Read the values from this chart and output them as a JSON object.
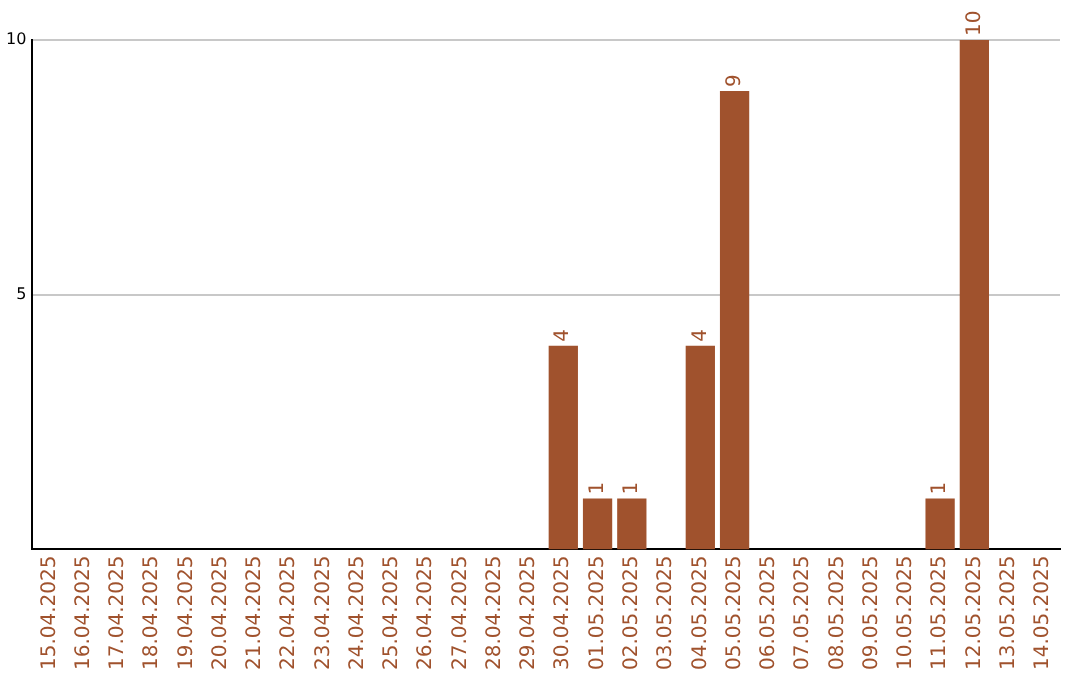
{
  "chart_data": {
    "type": "bar",
    "categories": [
      "15.04.2025",
      "16.04.2025",
      "17.04.2025",
      "18.04.2025",
      "19.04.2025",
      "20.04.2025",
      "21.04.2025",
      "22.04.2025",
      "23.04.2025",
      "24.04.2025",
      "25.04.2025",
      "26.04.2025",
      "27.04.2025",
      "28.04.2025",
      "29.04.2025",
      "30.04.2025",
      "01.05.2025",
      "02.05.2025",
      "03.05.2025",
      "04.05.2025",
      "05.05.2025",
      "06.05.2025",
      "07.05.2025",
      "08.05.2025",
      "09.05.2025",
      "10.05.2025",
      "11.05.2025",
      "12.05.2025",
      "13.05.2025",
      "14.05.2025"
    ],
    "values": [
      null,
      null,
      null,
      null,
      null,
      null,
      null,
      null,
      null,
      null,
      null,
      null,
      null,
      null,
      null,
      4,
      1,
      1,
      null,
      4,
      9,
      null,
      null,
      null,
      null,
      null,
      1,
      10,
      null,
      null
    ],
    "color": "#a0522d",
    "ylim": [
      0,
      10
    ],
    "yticks": [
      5,
      10
    ],
    "grid": "y",
    "legend": false,
    "data_labels": true
  }
}
